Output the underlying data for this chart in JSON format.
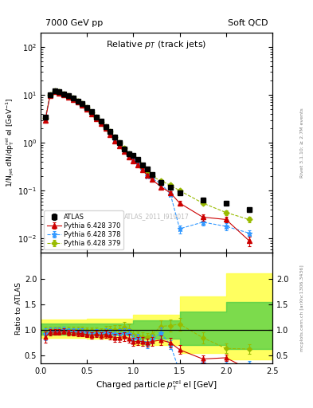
{
  "title_left": "7000 GeV pp",
  "title_right": "Soft QCD",
  "right_label_top": "Rivet 3.1.10; ≥ 2.7M events",
  "right_label_bot": "mcplots.cern.ch [arXiv:1306.3436]",
  "watermark": "ATLAS_2011_I919017",
  "xlim": [
    0,
    2.5
  ],
  "ylim_main": [
    0.005,
    200
  ],
  "ylim_ratio": [
    0.35,
    2.5
  ],
  "ratio_yticks": [
    0.5,
    1.0,
    1.5,
    2.0
  ],
  "atlas_x": [
    0.05,
    0.1,
    0.15,
    0.2,
    0.25,
    0.3,
    0.35,
    0.4,
    0.45,
    0.5,
    0.55,
    0.6,
    0.65,
    0.7,
    0.75,
    0.8,
    0.85,
    0.9,
    0.95,
    1.0,
    1.05,
    1.1,
    1.15,
    1.2,
    1.3,
    1.4,
    1.5,
    1.75,
    2.0,
    2.25
  ],
  "atlas_y": [
    3.5,
    10.0,
    12.0,
    11.5,
    10.5,
    9.5,
    8.5,
    7.5,
    6.5,
    5.5,
    4.5,
    3.5,
    2.8,
    2.2,
    1.7,
    1.3,
    1.0,
    0.75,
    0.6,
    0.55,
    0.45,
    0.35,
    0.28,
    0.22,
    0.15,
    0.12,
    0.09,
    0.065,
    0.055,
    0.04
  ],
  "atlas_ye": [
    0.3,
    0.5,
    0.5,
    0.5,
    0.4,
    0.4,
    0.35,
    0.3,
    0.25,
    0.22,
    0.2,
    0.18,
    0.15,
    0.12,
    0.1,
    0.08,
    0.07,
    0.06,
    0.05,
    0.04,
    0.03,
    0.025,
    0.02,
    0.015,
    0.012,
    0.01,
    0.008,
    0.006,
    0.005,
    0.004
  ],
  "py370_x": [
    0.05,
    0.1,
    0.15,
    0.2,
    0.25,
    0.3,
    0.35,
    0.4,
    0.45,
    0.5,
    0.55,
    0.6,
    0.65,
    0.7,
    0.75,
    0.8,
    0.85,
    0.9,
    0.95,
    1.0,
    1.05,
    1.1,
    1.15,
    1.2,
    1.3,
    1.4,
    1.5,
    1.75,
    2.0,
    2.25
  ],
  "py370_y": [
    3.0,
    9.5,
    11.5,
    11.0,
    10.2,
    9.0,
    8.0,
    7.0,
    6.0,
    5.0,
    4.0,
    3.2,
    2.5,
    2.0,
    1.5,
    1.1,
    0.85,
    0.65,
    0.5,
    0.42,
    0.35,
    0.27,
    0.21,
    0.17,
    0.12,
    0.09,
    0.055,
    0.028,
    0.025,
    0.009
  ],
  "py370_ye": [
    0.25,
    0.4,
    0.45,
    0.4,
    0.38,
    0.35,
    0.3,
    0.27,
    0.24,
    0.2,
    0.18,
    0.15,
    0.12,
    0.1,
    0.08,
    0.07,
    0.055,
    0.045,
    0.035,
    0.03,
    0.025,
    0.02,
    0.016,
    0.013,
    0.01,
    0.008,
    0.006,
    0.004,
    0.003,
    0.002
  ],
  "py378_x": [
    0.05,
    0.1,
    0.15,
    0.2,
    0.25,
    0.3,
    0.35,
    0.4,
    0.45,
    0.5,
    0.55,
    0.6,
    0.65,
    0.7,
    0.75,
    0.8,
    0.85,
    0.9,
    0.95,
    1.0,
    1.05,
    1.1,
    1.15,
    1.2,
    1.3,
    1.4,
    1.5,
    1.75,
    2.0,
    2.25
  ],
  "py378_y": [
    3.2,
    9.8,
    11.8,
    11.3,
    10.5,
    9.3,
    8.3,
    7.3,
    6.3,
    5.2,
    4.2,
    3.3,
    2.6,
    2.1,
    1.6,
    1.2,
    0.92,
    0.7,
    0.55,
    0.45,
    0.38,
    0.27,
    0.2,
    0.18,
    0.14,
    0.085,
    0.016,
    0.022,
    0.018,
    0.013
  ],
  "py378_ye": [
    0.28,
    0.42,
    0.47,
    0.42,
    0.4,
    0.36,
    0.32,
    0.28,
    0.25,
    0.21,
    0.19,
    0.16,
    0.13,
    0.11,
    0.09,
    0.07,
    0.06,
    0.048,
    0.038,
    0.032,
    0.027,
    0.02,
    0.015,
    0.014,
    0.011,
    0.007,
    0.003,
    0.003,
    0.003,
    0.002
  ],
  "py379_x": [
    0.05,
    0.1,
    0.15,
    0.2,
    0.25,
    0.3,
    0.35,
    0.4,
    0.45,
    0.5,
    0.55,
    0.6,
    0.65,
    0.7,
    0.75,
    0.8,
    0.85,
    0.9,
    0.95,
    1.0,
    1.05,
    1.1,
    1.15,
    1.2,
    1.3,
    1.4,
    1.5,
    1.75,
    2.0,
    2.25
  ],
  "py379_y": [
    3.3,
    10.0,
    12.0,
    11.5,
    10.5,
    9.5,
    8.5,
    7.5,
    6.5,
    5.4,
    4.4,
    3.4,
    2.7,
    2.2,
    1.7,
    1.3,
    1.0,
    0.78,
    0.6,
    0.5,
    0.4,
    0.3,
    0.24,
    0.2,
    0.16,
    0.13,
    0.1,
    0.055,
    0.035,
    0.025
  ],
  "py379_ye": [
    0.28,
    0.43,
    0.48,
    0.43,
    0.4,
    0.37,
    0.33,
    0.29,
    0.26,
    0.22,
    0.19,
    0.16,
    0.13,
    0.11,
    0.09,
    0.075,
    0.06,
    0.05,
    0.04,
    0.033,
    0.028,
    0.022,
    0.017,
    0.014,
    0.012,
    0.009,
    0.007,
    0.005,
    0.004,
    0.003
  ],
  "band_x": [
    0.0,
    0.5,
    1.0,
    1.5,
    2.0,
    2.5
  ],
  "band_y_lo": [
    0.85,
    0.82,
    0.7,
    0.55,
    0.42,
    0.42
  ],
  "band_y_hi": [
    1.2,
    1.22,
    1.3,
    1.65,
    2.1,
    2.1
  ],
  "band_g_lo": [
    0.9,
    0.9,
    0.82,
    0.7,
    0.62,
    0.62
  ],
  "band_g_hi": [
    1.12,
    1.13,
    1.18,
    1.35,
    1.55,
    1.55
  ],
  "color_atlas": "#000000",
  "color_py370": "#cc0000",
  "color_py378": "#3399ff",
  "color_py379": "#99bb00",
  "color_yellow": "#ffff44",
  "color_green": "#44cc44",
  "color_wm": "#bbbbbb"
}
